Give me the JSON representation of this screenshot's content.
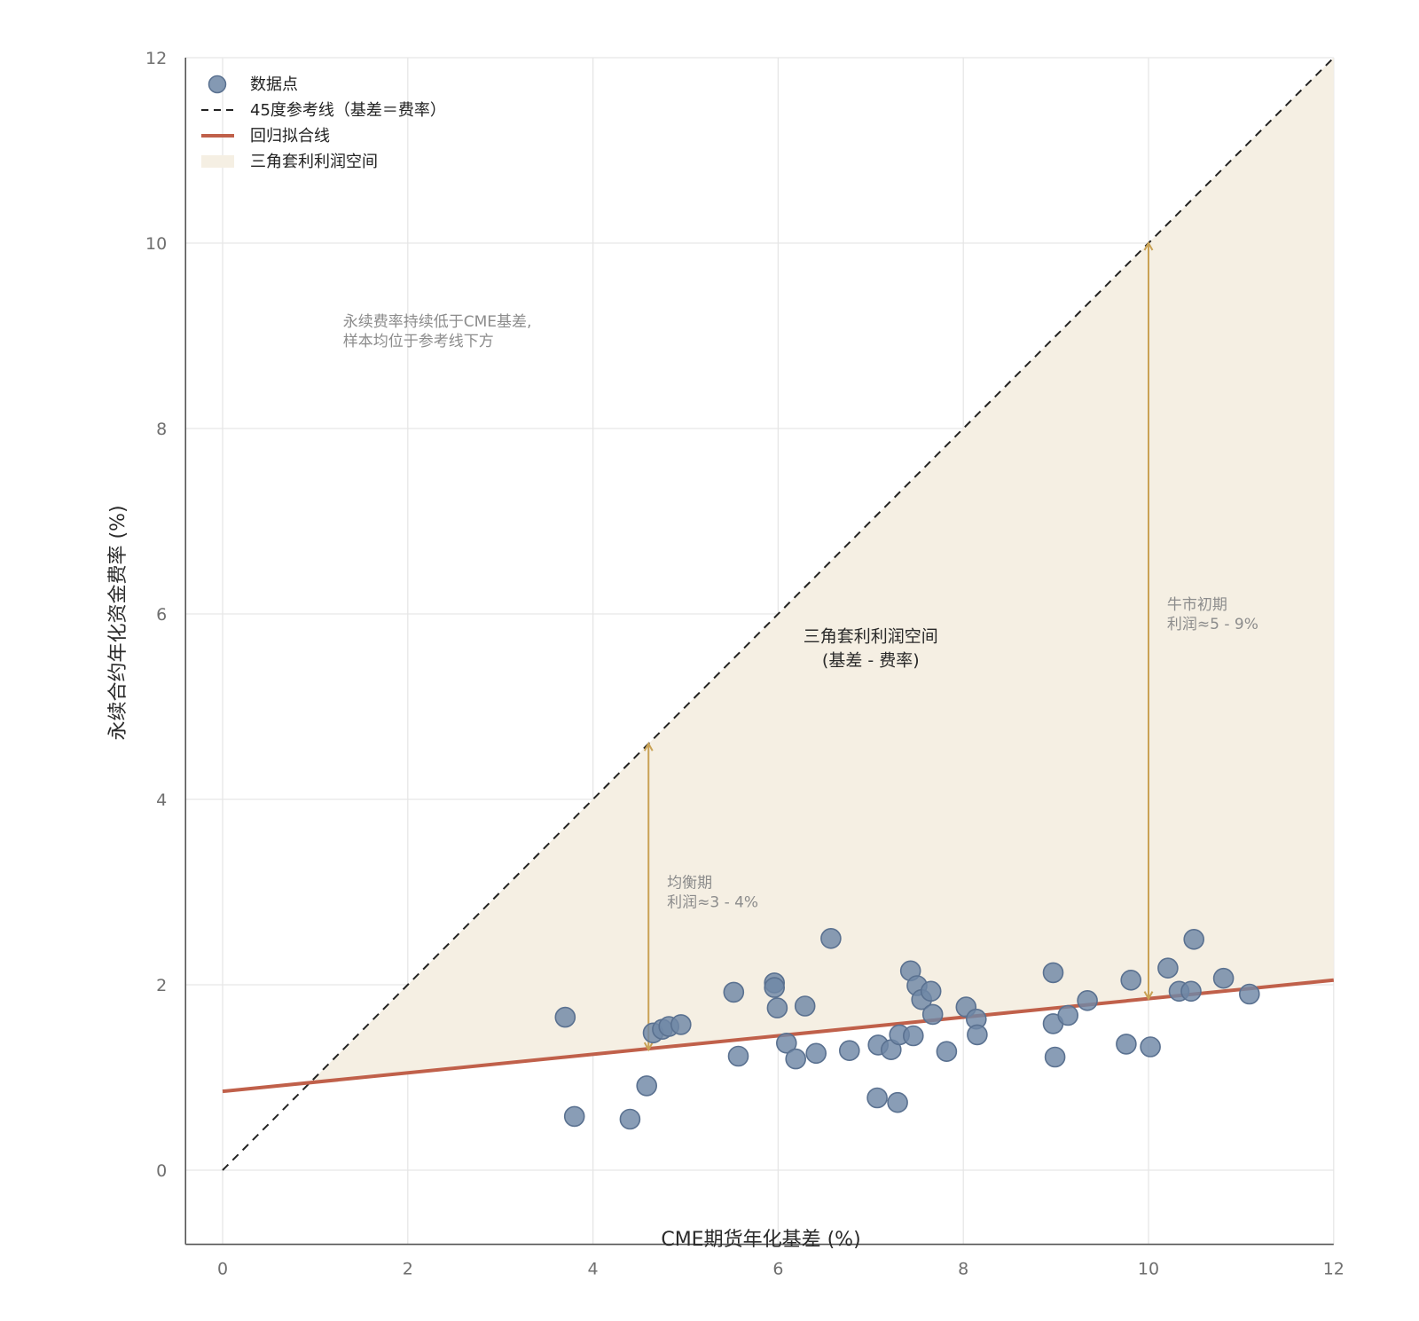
{
  "chart_data": {
    "type": "scatter",
    "xlabel": "CME期货年化基差 (%)",
    "ylabel": "永续合约年化资金费率 (%)",
    "xlim": [
      -0.4,
      12
    ],
    "ylim": [
      -0.8,
      12
    ],
    "xticks": [
      0,
      2,
      4,
      6,
      8,
      10,
      12
    ],
    "yticks": [
      0,
      2,
      4,
      6,
      8,
      10,
      12
    ],
    "grid": true,
    "legend_position": "top-left",
    "legend": [
      {
        "key": "points",
        "label": "数据点"
      },
      {
        "key": "ref",
        "label": "45度参考线（基差＝费率）"
      },
      {
        "key": "fit",
        "label": "回归拟合线"
      },
      {
        "key": "region",
        "label": "三角套利利润空间"
      }
    ],
    "series": [
      {
        "name": "数据点",
        "kind": "scatter",
        "color": "#6f87a6",
        "points": [
          [
            3.7,
            1.65
          ],
          [
            3.8,
            0.58
          ],
          [
            4.4,
            0.55
          ],
          [
            4.58,
            0.91
          ],
          [
            4.65,
            1.48
          ],
          [
            4.75,
            1.52
          ],
          [
            4.82,
            1.55
          ],
          [
            4.95,
            1.57
          ],
          [
            5.52,
            1.92
          ],
          [
            5.57,
            1.23
          ],
          [
            5.96,
            2.02
          ],
          [
            5.96,
            1.97
          ],
          [
            5.99,
            1.75
          ],
          [
            6.09,
            1.37
          ],
          [
            6.19,
            1.2
          ],
          [
            6.29,
            1.77
          ],
          [
            6.41,
            1.26
          ],
          [
            6.57,
            2.5
          ],
          [
            6.77,
            1.29
          ],
          [
            7.07,
            0.78
          ],
          [
            7.08,
            1.35
          ],
          [
            7.22,
            1.3
          ],
          [
            7.29,
            0.73
          ],
          [
            7.31,
            1.46
          ],
          [
            7.43,
            2.15
          ],
          [
            7.46,
            1.45
          ],
          [
            7.5,
            1.99
          ],
          [
            7.55,
            1.84
          ],
          [
            7.65,
            1.93
          ],
          [
            7.67,
            1.68
          ],
          [
            7.82,
            1.28
          ],
          [
            8.03,
            1.76
          ],
          [
            8.14,
            1.63
          ],
          [
            8.15,
            1.46
          ],
          [
            8.97,
            2.13
          ],
          [
            8.97,
            1.58
          ],
          [
            8.99,
            1.22
          ],
          [
            9.13,
            1.67
          ],
          [
            9.34,
            1.83
          ],
          [
            9.76,
            1.36
          ],
          [
            9.81,
            2.05
          ],
          [
            10.02,
            1.33
          ],
          [
            10.21,
            2.18
          ],
          [
            10.33,
            1.93
          ],
          [
            10.46,
            1.93
          ],
          [
            10.49,
            2.49
          ],
          [
            10.81,
            2.07
          ],
          [
            11.09,
            1.9
          ]
        ]
      },
      {
        "name": "45度参考线（基差＝费率）",
        "kind": "line",
        "style": "dashed",
        "color": "#222222",
        "x": [
          0,
          12
        ],
        "y": [
          0,
          12
        ]
      },
      {
        "name": "回归拟合线",
        "kind": "line",
        "style": "solid",
        "color": "#c0604a",
        "x": [
          0,
          12
        ],
        "y": [
          0.85,
          2.05
        ]
      }
    ],
    "region": {
      "name": "三角套利利润空间",
      "color": "#f5efe3",
      "upper": "45度参考线",
      "lower": "回归拟合线"
    },
    "arrows": [
      {
        "x": 4.6,
        "y_from": 1.3,
        "y_to": 4.6,
        "color": "#c9a255"
      },
      {
        "x": 10.0,
        "y_from": 1.85,
        "y_to": 10.0,
        "color": "#c9a255"
      }
    ],
    "annotations": [
      {
        "key": "note1",
        "lines": [
          "永续费率持续低于CME基差,",
          "样本均位于参考线下方"
        ],
        "x": 1.3,
        "y": 9.1,
        "style": "note",
        "anchor": "start"
      },
      {
        "key": "region_label",
        "lines": [
          "三角套利利润空间",
          "(基差 - 费率)"
        ],
        "x": 7.0,
        "y": 5.7,
        "style": "region",
        "anchor": "middle"
      },
      {
        "key": "eq",
        "lines": [
          "均衡期",
          "利润≈3 - 4%"
        ],
        "x": 4.8,
        "y": 3.05,
        "style": "note",
        "anchor": "start"
      },
      {
        "key": "bull",
        "lines": [
          "牛市初期",
          "利润≈5 - 9%"
        ],
        "x": 10.2,
        "y": 6.05,
        "style": "note",
        "anchor": "start"
      }
    ]
  }
}
